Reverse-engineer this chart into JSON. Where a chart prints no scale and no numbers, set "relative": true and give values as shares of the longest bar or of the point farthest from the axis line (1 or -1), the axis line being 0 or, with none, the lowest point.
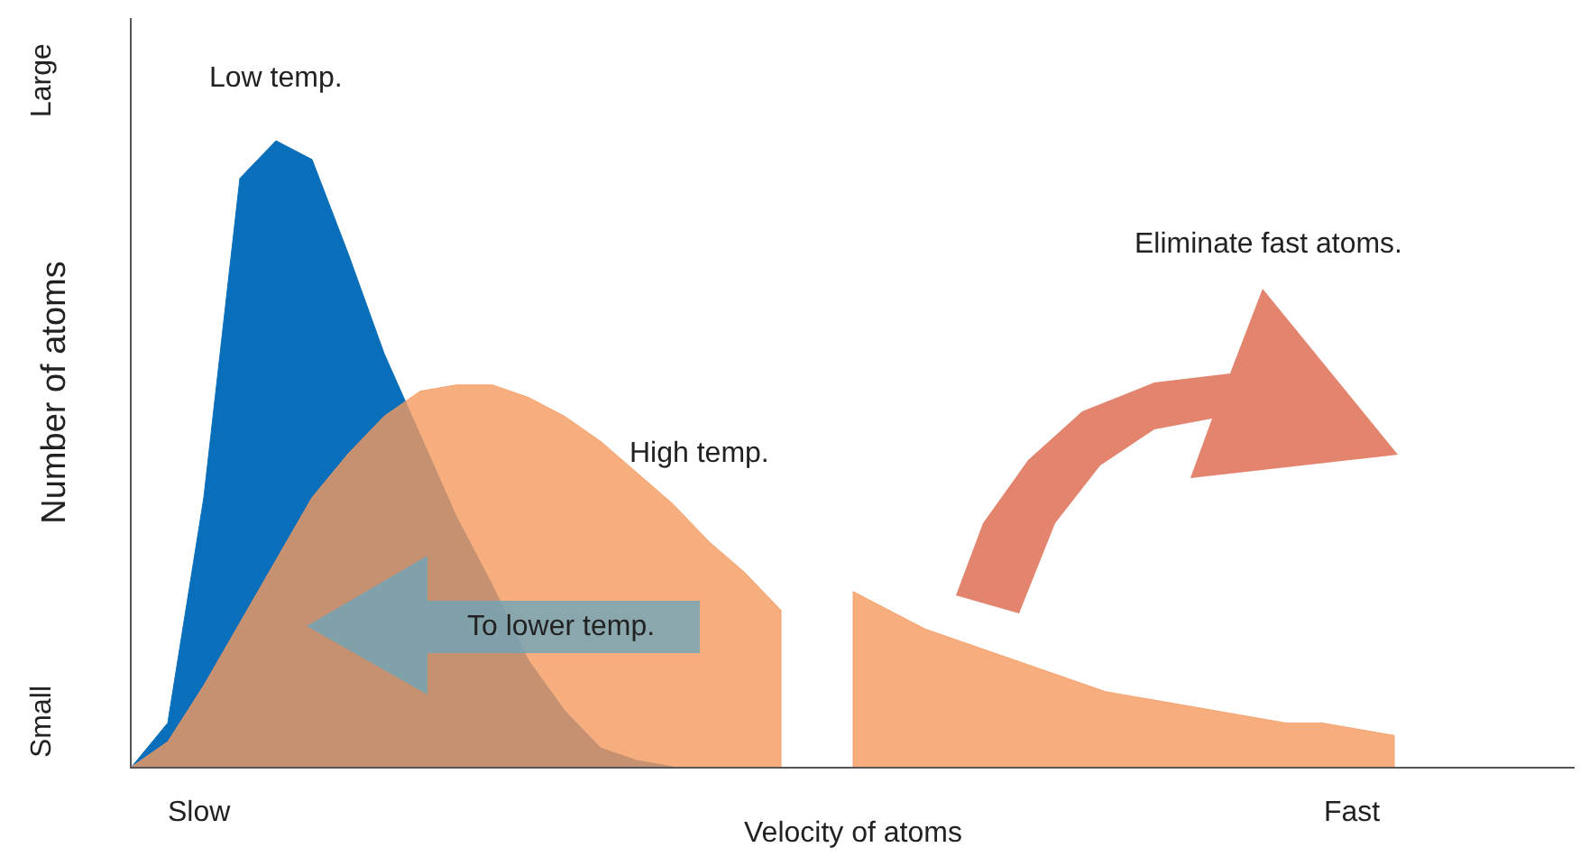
{
  "chart_data": {
    "type": "area",
    "relative": true,
    "xlabel": "Velocity of atoms",
    "ylabel": "Number of atoms",
    "legend": false,
    "categories": [
      null,
      null,
      null,
      null,
      null,
      null,
      null,
      null,
      null,
      null,
      null,
      null,
      null,
      null,
      null,
      null,
      null,
      null,
      null,
      null,
      null,
      null,
      null,
      null,
      null,
      null,
      null,
      null,
      null,
      null,
      null,
      null,
      null,
      null,
      null,
      null,
      null,
      null,
      null,
      null,
      null
    ],
    "series": [
      {
        "name": "Low temp.",
        "color": "#0a6fba",
        "values": [
          0,
          0.07,
          0.43,
          0.94,
          1.0,
          0.97,
          0.82,
          0.66,
          0.53,
          0.4,
          0.29,
          0.17,
          0.09,
          0.03,
          0.01,
          0,
          null,
          null,
          null,
          null,
          null,
          null,
          null,
          null,
          null,
          null,
          null,
          null,
          null,
          null,
          null,
          null,
          null,
          null,
          null,
          null,
          null,
          null,
          null,
          null,
          null
        ]
      },
      {
        "name": "High temp.",
        "color": "#f59a5f",
        "values": [
          0,
          0.04,
          0.13,
          0.23,
          0.33,
          0.43,
          0.5,
          0.56,
          0.6,
          0.61,
          0.61,
          0.59,
          0.56,
          0.52,
          0.47,
          0.42,
          0.36,
          0.31,
          0.25,
          null,
          0.28,
          0.25,
          0.22,
          0.2,
          0.18,
          0.16,
          0.14,
          0.12,
          0.11,
          0.1,
          0.09,
          0.08,
          0.07,
          0.07,
          0.06,
          0.05,
          null,
          null,
          null,
          null,
          null
        ]
      }
    ],
    "annotations": [
      "Slow",
      "Fast",
      "Small",
      "Large",
      "To lower temp.",
      "Eliminate fast atoms."
    ]
  }
}
